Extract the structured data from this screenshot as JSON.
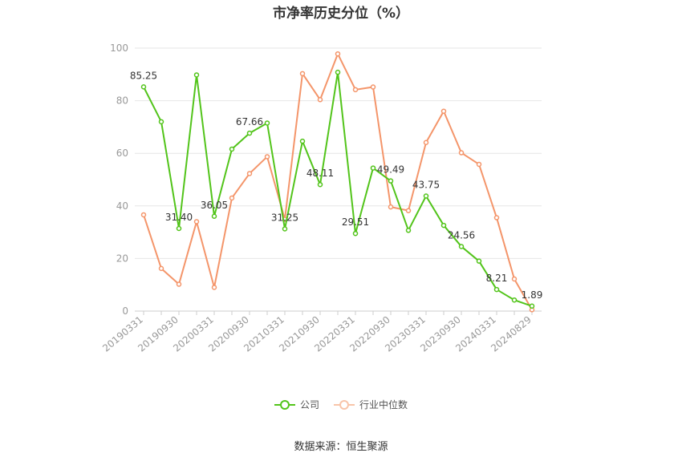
{
  "chart_data": {
    "type": "line",
    "title": "市净率历史分位（%）",
    "x": [
      "20190331",
      "20190630",
      "20190930",
      "20191231",
      "20200331",
      "20200630",
      "20200930",
      "20201231",
      "20210331",
      "20210630",
      "20210930",
      "20211231",
      "20220331",
      "20220630",
      "20220930",
      "20221231",
      "20230331",
      "20230630",
      "20230930",
      "20231231",
      "20240331",
      "20240630",
      "20240829"
    ],
    "x_tick_labels": [
      "20190331",
      "20190930",
      "20200331",
      "20200930",
      "20210331",
      "20210930",
      "20220331",
      "20220930",
      "20230331",
      "20230930",
      "20240331",
      "20240829"
    ],
    "ylim": [
      0,
      100
    ],
    "y_ticks": [
      0,
      20,
      40,
      60,
      80,
      100
    ],
    "grid": true,
    "legend_position": "bottom",
    "series": [
      {
        "name": "公司",
        "color": "#52c41a",
        "values": [
          85.25,
          72.0,
          31.4,
          89.8,
          36.05,
          61.6,
          67.66,
          71.5,
          31.25,
          64.6,
          48.11,
          90.8,
          29.51,
          54.4,
          49.49,
          30.7,
          43.75,
          32.6,
          24.56,
          19.0,
          8.21,
          4.2,
          1.89
        ],
        "data_labels": [
          {
            "index": 0,
            "text": "85.25"
          },
          {
            "index": 2,
            "text": "31.40"
          },
          {
            "index": 4,
            "text": "36.05"
          },
          {
            "index": 6,
            "text": "67.66"
          },
          {
            "index": 8,
            "text": "31.25"
          },
          {
            "index": 10,
            "text": "48.11"
          },
          {
            "index": 12,
            "text": "29.51"
          },
          {
            "index": 14,
            "text": "49.49"
          },
          {
            "index": 16,
            "text": "43.75"
          },
          {
            "index": 18,
            "text": "24.56"
          },
          {
            "index": 20,
            "text": "8.21"
          },
          {
            "index": 22,
            "text": "1.89"
          }
        ]
      },
      {
        "name": "行业中位数",
        "color": "#f4956a",
        "values": [
          36.6,
          16.2,
          10.2,
          34.0,
          9.0,
          43.0,
          52.3,
          58.7,
          34.9,
          90.3,
          80.4,
          97.8,
          84.2,
          85.2,
          39.6,
          38.2,
          64.1,
          76.0,
          60.2,
          55.8,
          35.5,
          12.2,
          0.5
        ]
      }
    ],
    "source": "数据来源：恒生聚源"
  }
}
